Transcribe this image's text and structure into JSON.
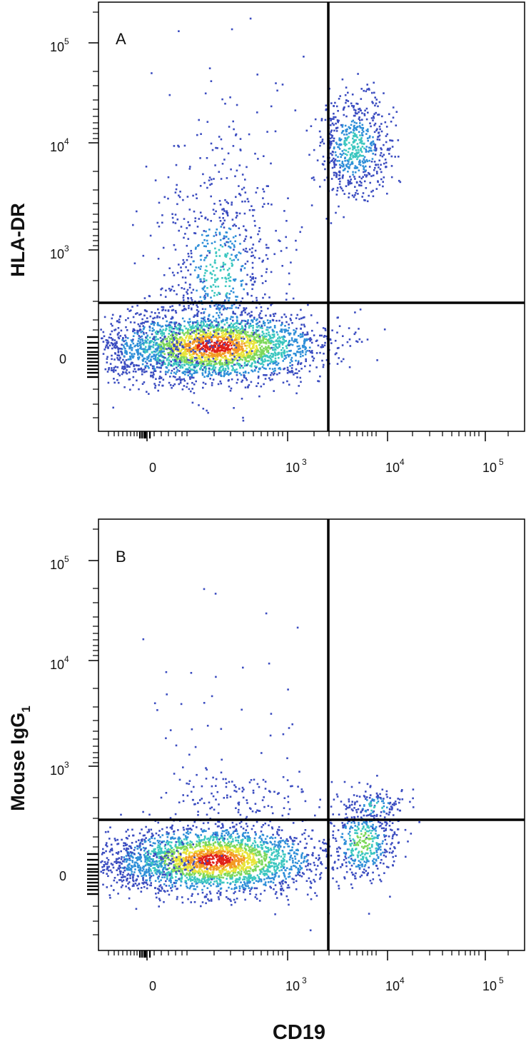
{
  "figure": {
    "x_axis_label": "CD19",
    "x_ticks": [
      {
        "value": "0",
        "base": "0",
        "exp": ""
      },
      {
        "value": "1000",
        "base": "10",
        "exp": "3"
      },
      {
        "value": "10000",
        "base": "10",
        "exp": "4"
      },
      {
        "value": "100000",
        "base": "10",
        "exp": "5"
      }
    ],
    "y_ticks": [
      {
        "value": "0",
        "base": "0",
        "exp": ""
      },
      {
        "value": "1000",
        "base": "10",
        "exp": "3"
      },
      {
        "value": "10000",
        "base": "10",
        "exp": "4"
      },
      {
        "value": "100000",
        "base": "10",
        "exp": "5"
      }
    ],
    "density_colors": [
      "#3b4cc0",
      "#2f8fd8",
      "#3cc7c0",
      "#7dd85a",
      "#e8e43a",
      "#f39a24",
      "#e02018"
    ]
  },
  "chart_data": [
    {
      "type": "scatter",
      "panel_label": "A",
      "xlabel": "CD19",
      "ylabel": "HLA-DR",
      "x_scale": "biexponential",
      "y_scale": "biexponential",
      "quadrant_gate": {
        "x": 2300,
        "y": 320
      },
      "populations": [
        {
          "center": [
            380,
            90
          ],
          "spread": "dense",
          "note_density": "high"
        },
        {
          "center": [
            380,
            900
          ],
          "spread": "diffuse",
          "note_density": "low"
        },
        {
          "center": [
            4500,
            8500
          ],
          "spread": "compact",
          "note_density": "medium"
        }
      ]
    },
    {
      "type": "scatter",
      "panel_label": "B",
      "xlabel": "CD19",
      "ylabel": "Mouse IgG1",
      "ylabel_main": "Mouse IgG",
      "ylabel_sub": "1",
      "x_scale": "biexponential",
      "y_scale": "biexponential",
      "quadrant_gate": {
        "x": 2300,
        "y": 320
      },
      "populations": [
        {
          "center": [
            350,
            60
          ],
          "spread": "dense",
          "note_density": "high"
        },
        {
          "center": [
            5500,
            160
          ],
          "spread": "compact",
          "note_density": "medium"
        },
        {
          "center": [
            400,
            600
          ],
          "spread": "sparse",
          "note_density": "very_low"
        }
      ]
    }
  ]
}
